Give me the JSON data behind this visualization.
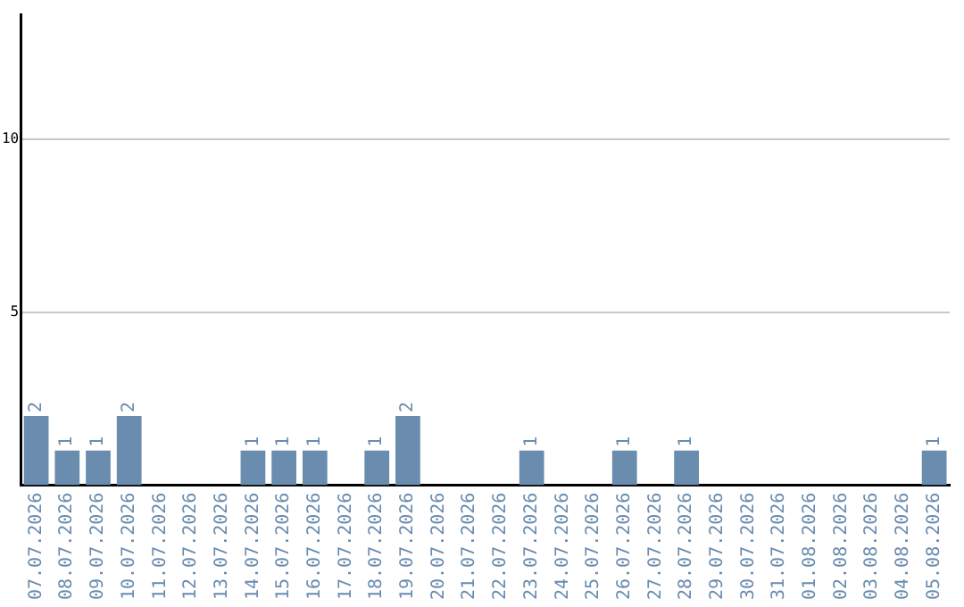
{
  "chart_data": {
    "type": "bar",
    "categories": [
      "07.07.2026",
      "08.07.2026",
      "09.07.2026",
      "10.07.2026",
      "11.07.2026",
      "12.07.2026",
      "13.07.2026",
      "14.07.2026",
      "15.07.2026",
      "16.07.2026",
      "17.07.2026",
      "18.07.2026",
      "19.07.2026",
      "20.07.2026",
      "21.07.2026",
      "22.07.2026",
      "23.07.2026",
      "24.07.2026",
      "25.07.2026",
      "26.07.2026",
      "27.07.2026",
      "28.07.2026",
      "29.07.2026",
      "30.07.2026",
      "31.07.2026",
      "01.08.2026",
      "02.08.2026",
      "03.08.2026",
      "04.08.2026",
      "05.08.2026"
    ],
    "values": [
      2,
      1,
      1,
      2,
      0,
      0,
      0,
      1,
      1,
      1,
      0,
      1,
      2,
      0,
      0,
      0,
      1,
      0,
      0,
      1,
      0,
      1,
      0,
      0,
      0,
      0,
      0,
      0,
      0,
      1
    ],
    "value_labels": [
      "2",
      "1",
      "1",
      "2",
      null,
      null,
      null,
      "1",
      "1",
      "1",
      null,
      "1",
      "2",
      null,
      null,
      null,
      "1",
      null,
      null,
      "1",
      null,
      "1",
      null,
      null,
      null,
      null,
      null,
      null,
      null,
      "1"
    ],
    "color": "#6a8caf",
    "ylim": [
      0,
      13.6
    ],
    "yticks": [
      5,
      10
    ],
    "grid": "y",
    "legend": false
  }
}
